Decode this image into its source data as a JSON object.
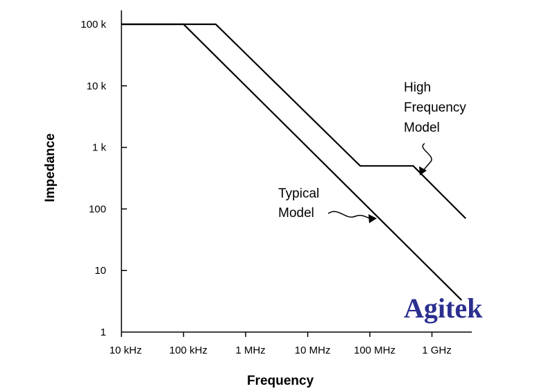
{
  "chart_data": {
    "type": "line",
    "title": "",
    "xlabel": "Frequency",
    "ylabel": "Impedance",
    "xscale": "log",
    "yscale": "log",
    "xlim": [
      10000,
      3500000000
    ],
    "ylim": [
      1,
      150000
    ],
    "grid": false,
    "x_tick_values": [
      10000,
      100000,
      1000000,
      10000000,
      100000000,
      1000000000
    ],
    "x_tick_labels": [
      "10 kHz",
      "100 kHz",
      "1 MHz",
      "10 MHz",
      "100 MHz",
      "1 GHz"
    ],
    "y_tick_values": [
      1,
      10,
      100,
      1000,
      10000,
      100000
    ],
    "y_tick_labels": [
      "1",
      "10",
      "100",
      "1 k",
      "10 k",
      "100 k"
    ],
    "series": [
      {
        "name": "Typical Model",
        "x": [
          10000,
          100000,
          3000000000
        ],
        "y": [
          100000,
          100000,
          3.3
        ]
      },
      {
        "name": "High Frequency Model",
        "x": [
          10000,
          330000,
          70000000,
          500000000,
          3500000000
        ],
        "y": [
          100000,
          100000,
          500,
          500,
          70
        ]
      }
    ],
    "annotations": [
      {
        "text_lines": [
          "Typical",
          "Model"
        ],
        "points_to": "Typical Model"
      },
      {
        "text_lines": [
          "High",
          "Frequency",
          "Model"
        ],
        "points_to": "High Frequency Model"
      }
    ]
  },
  "watermark": {
    "text": "Agitek",
    "color": "#2b2f8f"
  }
}
